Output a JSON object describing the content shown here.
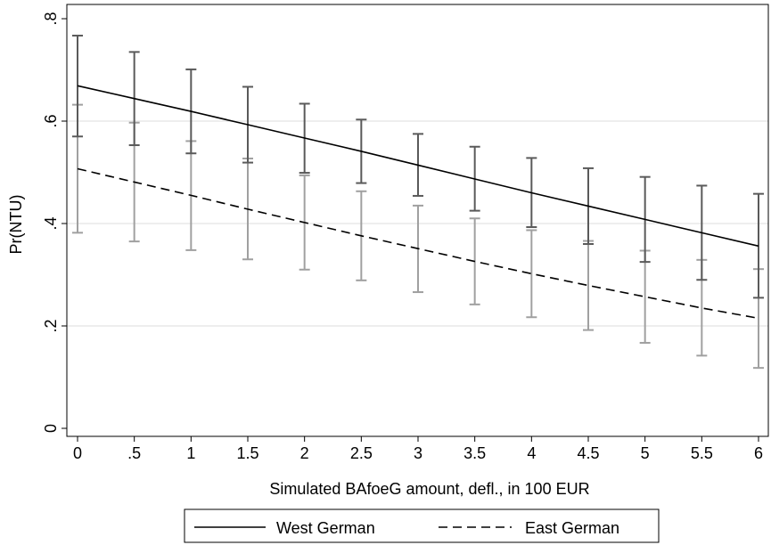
{
  "chart_data": {
    "type": "line",
    "xlabel": "Simulated BAfoeG amount, defl., in 100 EUR",
    "ylabel": "Pr(NTU)",
    "xlim": [
      0,
      6
    ],
    "ylim": [
      0,
      0.8
    ],
    "grid": "horizontal",
    "legend_position": "bottom",
    "x": [
      0,
      0.5,
      1,
      1.5,
      2,
      2.5,
      3,
      3.5,
      4,
      4.5,
      5,
      5.5,
      6
    ],
    "x_ticks": [
      {
        "value": 0,
        "label": "0"
      },
      {
        "value": 0.5,
        "label": ".5"
      },
      {
        "value": 1,
        "label": "1"
      },
      {
        "value": 1.5,
        "label": "1.5"
      },
      {
        "value": 2,
        "label": "2"
      },
      {
        "value": 2.5,
        "label": "2.5"
      },
      {
        "value": 3,
        "label": "3"
      },
      {
        "value": 3.5,
        "label": "3.5"
      },
      {
        "value": 4,
        "label": "4"
      },
      {
        "value": 4.5,
        "label": "4.5"
      },
      {
        "value": 5,
        "label": "5"
      },
      {
        "value": 5.5,
        "label": "5.5"
      },
      {
        "value": 6,
        "label": "6"
      }
    ],
    "y_ticks": [
      {
        "value": 0,
        "label": "0"
      },
      {
        "value": 0.2,
        "label": ".2"
      },
      {
        "value": 0.4,
        "label": ".4"
      },
      {
        "value": 0.6,
        "label": ".6"
      },
      {
        "value": 0.8,
        "label": ".8"
      }
    ],
    "series": [
      {
        "name": "West German",
        "line_style": "solid",
        "line_color": "#000000",
        "ci_color": "#5a5a5a",
        "values": [
          0.669,
          0.644,
          0.619,
          0.593,
          0.567,
          0.541,
          0.514,
          0.487,
          0.46,
          0.434,
          0.408,
          0.382,
          0.356
        ],
        "lower": [
          0.57,
          0.553,
          0.537,
          0.519,
          0.499,
          0.479,
          0.454,
          0.425,
          0.393,
          0.36,
          0.325,
          0.29,
          0.255
        ],
        "upper": [
          0.767,
          0.735,
          0.701,
          0.667,
          0.634,
          0.603,
          0.575,
          0.55,
          0.528,
          0.508,
          0.491,
          0.474,
          0.458
        ]
      },
      {
        "name": "East German",
        "line_style": "dashed",
        "line_color": "#000000",
        "ci_color": "#a0a0a0",
        "values": [
          0.507,
          0.481,
          0.455,
          0.428,
          0.402,
          0.376,
          0.351,
          0.326,
          0.302,
          0.279,
          0.257,
          0.235,
          0.215
        ],
        "lower": [
          0.382,
          0.365,
          0.348,
          0.33,
          0.31,
          0.289,
          0.266,
          0.242,
          0.217,
          0.192,
          0.167,
          0.142,
          0.118
        ],
        "upper": [
          0.632,
          0.597,
          0.561,
          0.527,
          0.494,
          0.463,
          0.435,
          0.41,
          0.387,
          0.366,
          0.347,
          0.329,
          0.311
        ]
      }
    ],
    "colors": {
      "grid": "#e8e8e8",
      "axis": "#000000",
      "background": "#ffffff"
    }
  }
}
